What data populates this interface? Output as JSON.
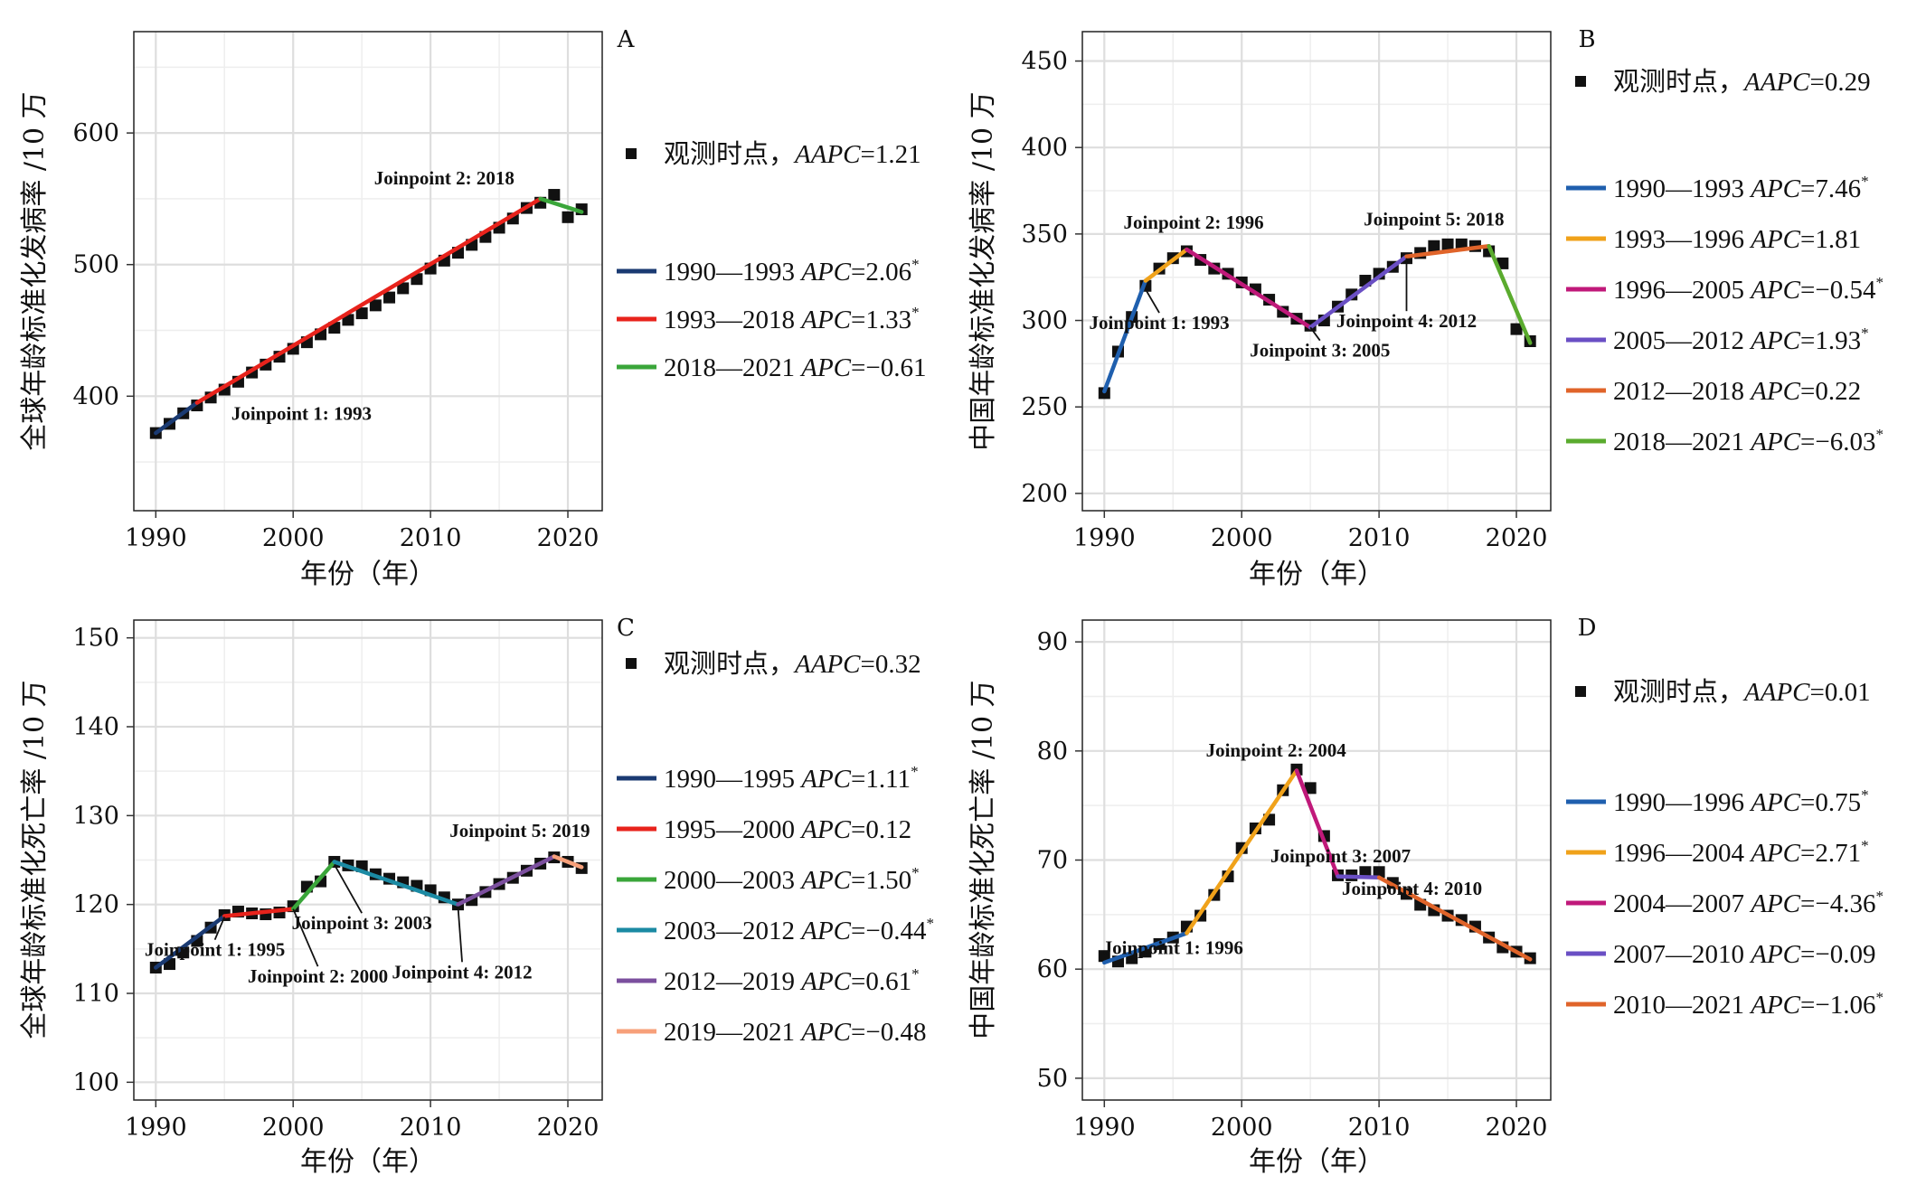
{
  "chart_data": [
    {
      "type": "line",
      "panel": "A",
      "xlabel": "年份（年）",
      "ylabel": "全球年龄标准化发病率 /10 万",
      "xlim": [
        1988.4,
        2022.5
      ],
      "ylim": [
        313,
        677
      ],
      "xticks": [
        1990,
        2000,
        2010,
        2020
      ],
      "yticks": [
        400,
        500,
        600
      ],
      "grid": true,
      "legend_position": "right",
      "observed": {
        "label": "观测时点，",
        "stat_name": "AAPC",
        "stat_value": "=1.21",
        "x": [
          1990,
          1991,
          1992,
          1993,
          1994,
          1995,
          1996,
          1997,
          1998,
          1999,
          2000,
          2001,
          2002,
          2003,
          2004,
          2005,
          2006,
          2007,
          2008,
          2009,
          2010,
          2011,
          2012,
          2013,
          2014,
          2015,
          2016,
          2017,
          2018,
          2019,
          2020,
          2021
        ],
        "y": [
          372,
          379,
          387,
          393,
          399,
          405,
          411,
          418,
          424,
          430,
          436,
          441,
          447,
          452,
          458,
          463,
          469,
          475,
          482,
          489,
          497,
          503,
          509,
          515,
          521,
          528,
          535,
          543,
          547,
          553,
          536,
          542
        ]
      },
      "segments": [
        {
          "years": "1990—1993",
          "stat_name": "APC",
          "stat_value": "=2.06",
          "star": "*",
          "color": "#1a3a72",
          "x": [
            1990,
            1993
          ],
          "y": [
            372,
            395
          ]
        },
        {
          "years": "1993—2018",
          "stat_name": "APC",
          "stat_value": "=1.33",
          "star": "*",
          "color": "#e8231c",
          "x": [
            1993,
            2018
          ],
          "y": [
            395,
            550
          ]
        },
        {
          "years": "2018—2021",
          "stat_name": "APC",
          "stat_value": "=−0.61",
          "star": "",
          "color": "#3aa63a",
          "x": [
            2018,
            2021
          ],
          "y": [
            550,
            540
          ]
        }
      ],
      "joinpoints": [
        {
          "label": "Joinpoint 1: 1993",
          "x": 1995.5,
          "y": 382,
          "anchor": "start"
        },
        {
          "label": "Joinpoint 2: 2018",
          "x": 2011.0,
          "y": 561,
          "anchor": "middle"
        }
      ]
    },
    {
      "type": "line",
      "panel": "B",
      "xlabel": "年份（年）",
      "ylabel": "中国年龄标准化发病率 /10 万",
      "xlim": [
        1988.4,
        2022.5
      ],
      "ylim": [
        190,
        467
      ],
      "xticks": [
        1990,
        2000,
        2010,
        2020
      ],
      "yticks": [
        200,
        250,
        300,
        350,
        400,
        450
      ],
      "grid": true,
      "legend_position": "right",
      "observed": {
        "label": "观测时点，",
        "stat_name": "AAPC",
        "stat_value": "=0.29",
        "x": [
          1990,
          1991,
          1992,
          1993,
          1994,
          1995,
          1996,
          1997,
          1998,
          1999,
          2000,
          2001,
          2002,
          2003,
          2004,
          2005,
          2006,
          2007,
          2008,
          2009,
          2010,
          2011,
          2012,
          2013,
          2014,
          2015,
          2016,
          2017,
          2018,
          2019,
          2020,
          2021
        ],
        "y": [
          258,
          282,
          302,
          320,
          330,
          336,
          340,
          335,
          330,
          327,
          322,
          318,
          312,
          305,
          301,
          297,
          300,
          308,
          315,
          323,
          327,
          331,
          336,
          339,
          343,
          344,
          344,
          343,
          340,
          333,
          295,
          288
        ]
      },
      "segments": [
        {
          "years": "1990—1993",
          "stat_name": "APC",
          "stat_value": "=7.46",
          "star": "*",
          "color": "#1f5fae",
          "x": [
            1990,
            1993
          ],
          "y": [
            259,
            323
          ]
        },
        {
          "years": "1993—1996",
          "stat_name": "APC",
          "stat_value": "=1.81",
          "star": "",
          "color": "#f0a21a",
          "x": [
            1993,
            1996
          ],
          "y": [
            323,
            341
          ]
        },
        {
          "years": "1996—2005",
          "stat_name": "APC",
          "stat_value": "=−0.54",
          "star": "*",
          "color": "#c0197a",
          "x": [
            1996,
            2005
          ],
          "y": [
            341,
            296
          ]
        },
        {
          "years": "2005—2012",
          "stat_name": "APC",
          "stat_value": "=1.93",
          "star": "*",
          "color": "#6a4fc4",
          "x": [
            2005,
            2012
          ],
          "y": [
            296,
            337
          ]
        },
        {
          "years": "2012—2018",
          "stat_name": "APC",
          "stat_value": "=0.22",
          "star": "",
          "color": "#e0642a",
          "x": [
            2012,
            2018
          ],
          "y": [
            337,
            343
          ]
        },
        {
          "years": "2018—2021",
          "stat_name": "APC",
          "stat_value": "=−6.03",
          "star": "*",
          "color": "#5aab2e",
          "x": [
            2018,
            2021
          ],
          "y": [
            343,
            287
          ]
        }
      ],
      "joinpoints": [
        {
          "label": "Joinpoint 1: 1993",
          "x": 1994.0,
          "y": 295,
          "anchor": "middle"
        },
        {
          "label": "Joinpoint 2: 1996",
          "x": 1996.5,
          "y": 353,
          "anchor": "middle"
        },
        {
          "label": "Joinpoint 3: 2005",
          "x": 2005.7,
          "y": 279,
          "anchor": "middle"
        },
        {
          "label": "Joinpoint 4: 2012",
          "x": 2012.0,
          "y": 296,
          "anchor": "middle"
        },
        {
          "label": "Joinpoint 5: 2018",
          "x": 2014.0,
          "y": 355,
          "anchor": "middle"
        }
      ]
    },
    {
      "type": "line",
      "panel": "C",
      "xlabel": "年份（年）",
      "ylabel": "全球年龄标准化死亡率 /10 万",
      "xlim": [
        1988.4,
        2022.5
      ],
      "ylim": [
        98,
        152
      ],
      "xticks": [
        1990,
        2000,
        2010,
        2020
      ],
      "yticks": [
        100,
        110,
        120,
        130,
        140,
        150
      ],
      "grid": true,
      "legend_position": "right",
      "observed": {
        "label": "观测时点，",
        "stat_name": "AAPC",
        "stat_value": "=0.32",
        "x": [
          1990,
          1991,
          1992,
          1993,
          1994,
          1995,
          1996,
          1997,
          1998,
          1999,
          2000,
          2001,
          2002,
          2003,
          2004,
          2005,
          2006,
          2007,
          2008,
          2009,
          2010,
          2011,
          2012,
          2013,
          2014,
          2015,
          2016,
          2017,
          2018,
          2019,
          2020,
          2021
        ],
        "y": [
          112.9,
          113.3,
          114.6,
          115.9,
          117.4,
          118.8,
          119.2,
          119.0,
          118.9,
          119.1,
          119.8,
          122.0,
          122.6,
          124.8,
          124.4,
          124.3,
          123.4,
          122.9,
          122.5,
          122.1,
          121.6,
          120.8,
          120.0,
          120.5,
          121.4,
          122.3,
          123.0,
          123.8,
          124.6,
          125.3,
          124.8,
          124.1
        ]
      },
      "segments": [
        {
          "years": "1990—1995",
          "stat_name": "APC",
          "stat_value": "=1.11",
          "star": "*",
          "color": "#1a3a72",
          "x": [
            1990,
            1995
          ],
          "y": [
            112.9,
            118.7
          ]
        },
        {
          "years": "1995—2000",
          "stat_name": "APC",
          "stat_value": "=0.12",
          "star": "",
          "color": "#e8231c",
          "x": [
            1995,
            2000
          ],
          "y": [
            118.7,
            119.5
          ]
        },
        {
          "years": "2000—2003",
          "stat_name": "APC",
          "stat_value": "=1.50",
          "star": "*",
          "color": "#3aa63a",
          "x": [
            2000,
            2003
          ],
          "y": [
            119.5,
            124.8
          ]
        },
        {
          "years": "2003—2012",
          "stat_name": "APC",
          "stat_value": "=−0.44",
          "star": "*",
          "color": "#1b8aa3",
          "x": [
            2003,
            2012
          ],
          "y": [
            124.8,
            120.0
          ]
        },
        {
          "years": "2012—2019",
          "stat_name": "APC",
          "stat_value": "=0.61",
          "star": "*",
          "color": "#7b4f9e",
          "x": [
            2012,
            2019
          ],
          "y": [
            120.0,
            125.4
          ]
        },
        {
          "years": "2019—2021",
          "stat_name": "APC",
          "stat_value": "=−0.48",
          "star": "",
          "color": "#f7a07a",
          "x": [
            2019,
            2021
          ],
          "y": [
            125.4,
            124.2
          ]
        }
      ],
      "joinpoints": [
        {
          "label": "Joinpoint 1: 1995",
          "x": 1994.3,
          "y": 114.2,
          "anchor": "middle"
        },
        {
          "label": "Joinpoint 2: 2000",
          "x": 2001.8,
          "y": 111.2,
          "anchor": "middle"
        },
        {
          "label": "Joinpoint 3: 2003",
          "x": 2005.0,
          "y": 117.2,
          "anchor": "middle"
        },
        {
          "label": "Joinpoint 4: 2012",
          "x": 2012.3,
          "y": 111.7,
          "anchor": "middle"
        },
        {
          "label": "Joinpoint 5: 2019",
          "x": 2016.5,
          "y": 127.6,
          "anchor": "middle"
        }
      ]
    },
    {
      "type": "line",
      "panel": "D",
      "xlabel": "年份（年）",
      "ylabel": "中国年龄标准化死亡率 /10 万",
      "xlim": [
        1988.4,
        2022.5
      ],
      "ylim": [
        48,
        92
      ],
      "xticks": [
        1990,
        2000,
        2010,
        2020
      ],
      "yticks": [
        50,
        60,
        70,
        80,
        90
      ],
      "grid": true,
      "legend_position": "right",
      "observed": {
        "label": "观测时点，",
        "stat_name": "AAPC",
        "stat_value": "=0.01",
        "x": [
          1990,
          1991,
          1992,
          1993,
          1994,
          1995,
          1996,
          1997,
          1998,
          1999,
          2000,
          2001,
          2002,
          2003,
          2004,
          2005,
          2006,
          2007,
          2008,
          2009,
          2010,
          2011,
          2012,
          2013,
          2014,
          2015,
          2016,
          2017,
          2018,
          2019,
          2020,
          2021
        ],
        "y": [
          61.2,
          60.7,
          61.0,
          61.6,
          62.3,
          62.9,
          63.9,
          64.9,
          66.8,
          68.5,
          71.1,
          72.9,
          73.7,
          76.4,
          78.3,
          76.6,
          72.2,
          68.6,
          68.6,
          68.9,
          68.9,
          67.9,
          66.9,
          65.9,
          65.4,
          64.9,
          64.5,
          63.9,
          62.9,
          62.0,
          61.6,
          61.0
        ]
      },
      "segments": [
        {
          "years": "1990—1996",
          "stat_name": "APC",
          "stat_value": "=0.75",
          "star": "*",
          "color": "#1f5fae",
          "x": [
            1990,
            1996
          ],
          "y": [
            60.6,
            63.3
          ]
        },
        {
          "years": "1996—2004",
          "stat_name": "APC",
          "stat_value": "=2.71",
          "star": "*",
          "color": "#f0a21a",
          "x": [
            1996,
            2004
          ],
          "y": [
            63.3,
            78.2
          ]
        },
        {
          "years": "2004—2007",
          "stat_name": "APC",
          "stat_value": "=−4.36",
          "star": "*",
          "color": "#c0197a",
          "x": [
            2004,
            2007
          ],
          "y": [
            78.2,
            68.5
          ]
        },
        {
          "years": "2007—2010",
          "stat_name": "APC",
          "stat_value": "=−0.09",
          "star": "",
          "color": "#6a4fc4",
          "x": [
            2007,
            2010
          ],
          "y": [
            68.5,
            68.4
          ]
        },
        {
          "years": "2010—2021",
          "stat_name": "APC",
          "stat_value": "=−1.06",
          "star": "*",
          "color": "#e0642a",
          "x": [
            2010,
            2021
          ],
          "y": [
            68.4,
            60.9
          ]
        }
      ],
      "joinpoints": [
        {
          "label": "Joinpoint 1: 1996",
          "x": 1995.0,
          "y": 61.4,
          "anchor": "middle"
        },
        {
          "label": "Joinpoint 2: 2004",
          "x": 2002.5,
          "y": 79.5,
          "anchor": "middle"
        },
        {
          "label": "Joinpoint 3: 2007",
          "x": 2007.2,
          "y": 69.8,
          "anchor": "middle"
        },
        {
          "label": "Joinpoint 4: 2010",
          "x": 2012.4,
          "y": 66.8,
          "anchor": "middle"
        }
      ]
    }
  ]
}
